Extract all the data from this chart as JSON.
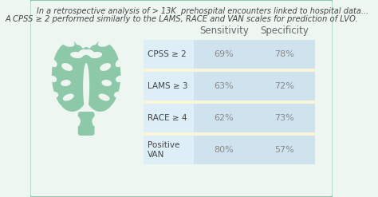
{
  "title_line1": "In a retrospective analysis of > 13K  prehospital encounters linked to hospital data...",
  "title_line2": "A CPSS ≥ 2 performed similarly to the LAMS, RACE and VAN scales for prediction of LVO.",
  "col_headers": [
    "Sensitivity",
    "Specificity"
  ],
  "rows": [
    {
      "label": "CPSS ≥ 2",
      "sensitivity": "69%",
      "specificity": "78%"
    },
    {
      "label": "LAMS ≥ 3",
      "sensitivity": "63%",
      "specificity": "72%"
    },
    {
      "label": "RACE ≥ 4",
      "sensitivity": "62%",
      "specificity": "73%"
    },
    {
      "label": "Positive\nVAN",
      "sensitivity": "80%",
      "specificity": "57%"
    }
  ],
  "bg_color": "#eef6f1",
  "border_color": "#7dbfa0",
  "row_cell_color": "#cfe3ef",
  "row_label_color": "#ddeef7",
  "row_divider_color": "#faf4d8",
  "text_color": "#444444",
  "header_text_color": "#666666",
  "value_text_color": "#888888",
  "brain_color": "#8dc8a8",
  "brain_sulci_color": "#eef6f1",
  "title1_fontsize": 7.0,
  "title2_fontsize": 7.2,
  "cell_fontsize": 8.0,
  "header_fontsize": 8.5,
  "label_fontsize": 7.5
}
